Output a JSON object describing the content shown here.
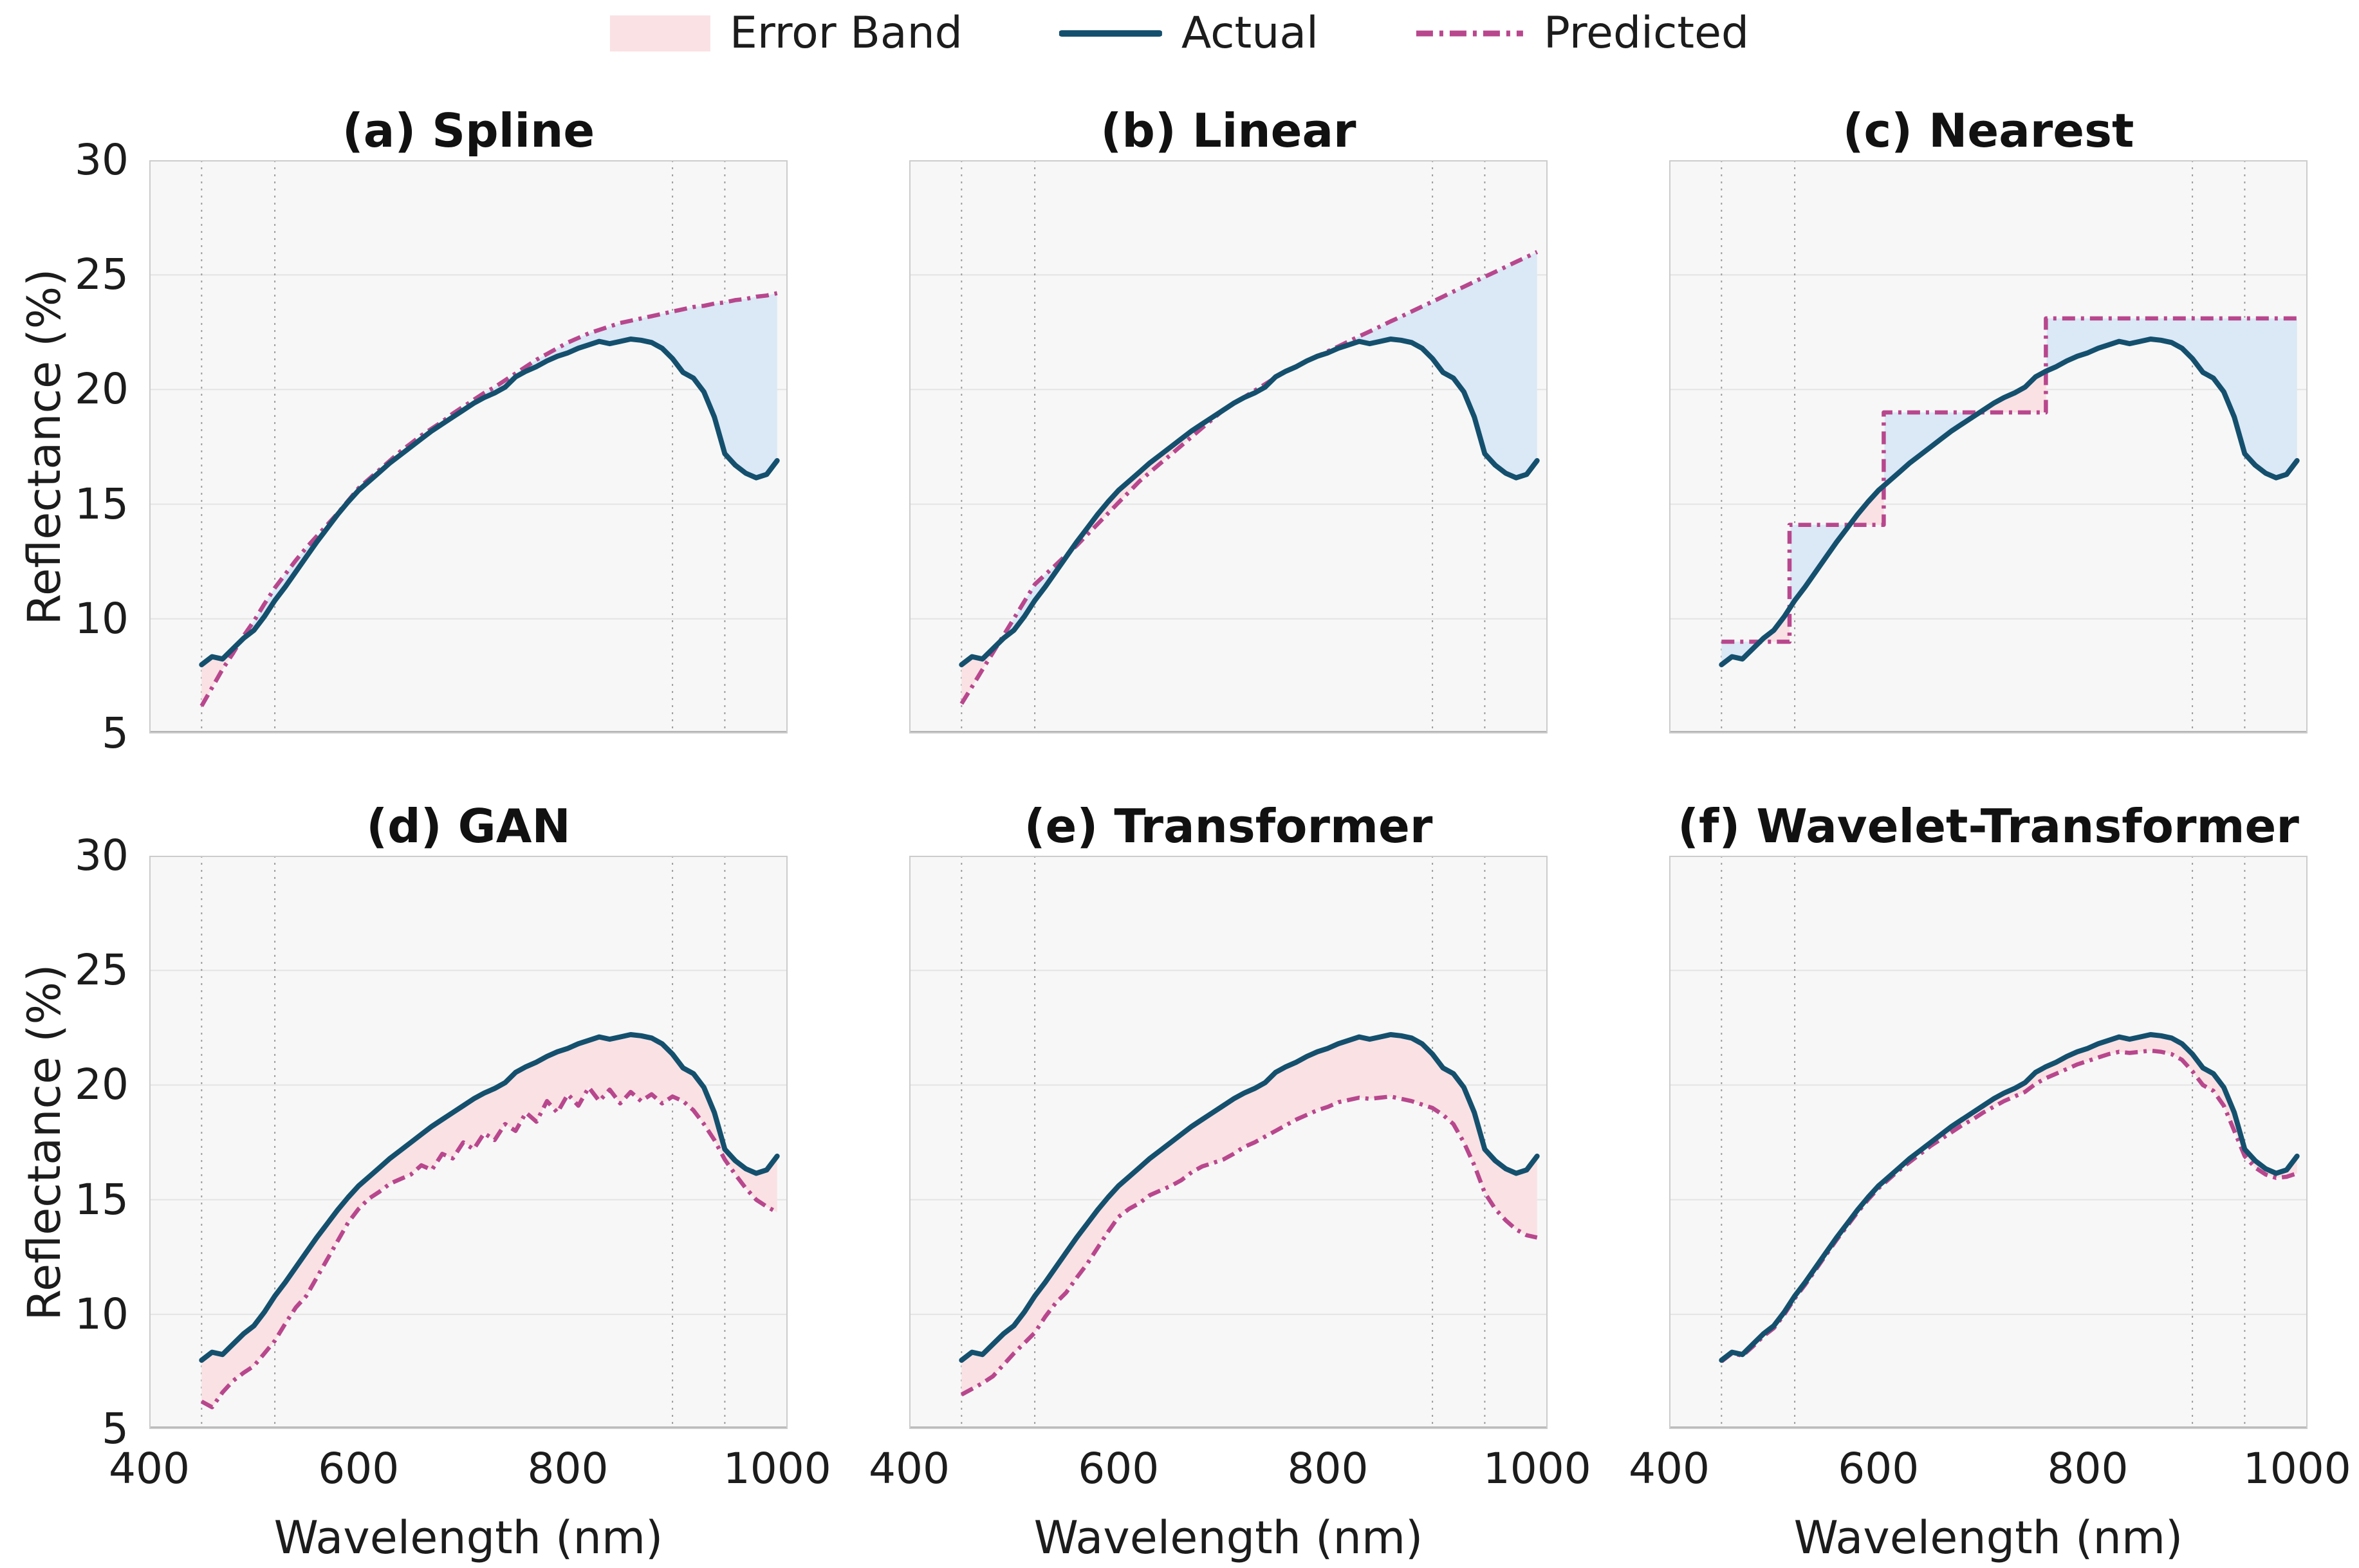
{
  "legend": {
    "items": [
      {
        "label": "Error Band",
        "symbol": "pink-band-swatch"
      },
      {
        "label": "Actual",
        "symbol": "solid-navy-line"
      },
      {
        "label": "Predicted",
        "symbol": "dashdot-magenta-line"
      }
    ]
  },
  "colors": {
    "actual_line": "#14506e",
    "predicted_line": "#b8478d",
    "error_band_fill": "#fae1e4",
    "overshoot_fill": "#dbe8f6",
    "plot_background": "#f7f7f7",
    "grid_line": "#e4e4e4",
    "band_marker_line": "#9d9d9d",
    "spine": "#cccccc",
    "bottom_spine": "#b5b5b5",
    "text": "#1c1c1c"
  },
  "chart_data": {
    "type": "line",
    "xlabel": "Wavelength (nm)",
    "ylabel": "Reflectance (%)",
    "x_ticks": [
      400,
      600,
      800,
      1000
    ],
    "y_ticks": [
      5,
      10,
      15,
      20,
      25,
      30
    ],
    "x_range": [
      400,
      1010
    ],
    "y_range": [
      5,
      30
    ],
    "grid": "horizontal",
    "band_marker_lines_nm": [
      450,
      520,
      900,
      950
    ],
    "wavelengths_nm": [
      450,
      460,
      470,
      480,
      490,
      500,
      510,
      520,
      530,
      540,
      550,
      560,
      570,
      580,
      590,
      600,
      610,
      620,
      630,
      640,
      650,
      660,
      670,
      680,
      690,
      700,
      710,
      720,
      730,
      740,
      750,
      760,
      770,
      780,
      790,
      800,
      810,
      820,
      830,
      840,
      850,
      860,
      870,
      880,
      890,
      900,
      910,
      920,
      930,
      940,
      950,
      960,
      970,
      980,
      990,
      1000
    ],
    "actual_reflectance": [
      8.0,
      8.35,
      8.25,
      8.7,
      9.15,
      9.5,
      10.1,
      10.8,
      11.4,
      12.05,
      12.7,
      13.35,
      13.95,
      14.55,
      15.1,
      15.6,
      16.0,
      16.4,
      16.8,
      17.15,
      17.5,
      17.85,
      18.2,
      18.5,
      18.8,
      19.1,
      19.4,
      19.65,
      19.85,
      20.1,
      20.55,
      20.8,
      21.0,
      21.25,
      21.45,
      21.6,
      21.8,
      21.95,
      22.1,
      22.0,
      22.1,
      22.2,
      22.15,
      22.05,
      21.8,
      21.35,
      20.75,
      20.5,
      19.9,
      18.8,
      17.2,
      16.7,
      16.35,
      16.15,
      16.3,
      16.9
    ],
    "charts": [
      {
        "id": "spline",
        "title": "(a) Spline",
        "predicted": [
          6.2,
          7.0,
          7.8,
          8.5,
          9.25,
          9.9,
          10.65,
          11.35,
          11.95,
          12.55,
          13.1,
          13.6,
          14.1,
          14.6,
          15.15,
          15.7,
          16.1,
          16.5,
          16.9,
          17.3,
          17.65,
          18.0,
          18.3,
          18.6,
          18.95,
          19.25,
          19.55,
          19.85,
          20.1,
          20.4,
          20.7,
          21.0,
          21.3,
          21.55,
          21.8,
          22.05,
          22.25,
          22.45,
          22.6,
          22.75,
          22.9,
          23.0,
          23.1,
          23.2,
          23.3,
          23.4,
          23.5,
          23.6,
          23.65,
          23.75,
          23.8,
          23.9,
          23.95,
          24.05,
          24.1,
          24.2
        ]
      },
      {
        "id": "linear",
        "title": "(b) Linear",
        "predicted": [
          6.3,
          7.04,
          7.79,
          8.53,
          9.27,
          10.01,
          10.76,
          11.5,
          11.93,
          12.35,
          12.78,
          13.2,
          13.67,
          14.13,
          14.6,
          15.07,
          15.53,
          16.0,
          16.39,
          16.78,
          17.16,
          17.55,
          17.94,
          18.33,
          18.71,
          19.1,
          19.38,
          19.67,
          19.95,
          20.23,
          20.52,
          20.8,
          21.02,
          21.23,
          21.45,
          21.67,
          21.88,
          22.1,
          22.32,
          22.53,
          22.75,
          22.97,
          23.18,
          23.4,
          23.62,
          23.83,
          24.05,
          24.27,
          24.48,
          24.7,
          24.92,
          25.13,
          25.35,
          25.57,
          25.78,
          26.0
        ]
      },
      {
        "id": "nearest",
        "title": "(c) Nearest",
        "predicted_step_points": [
          [
            450,
            9.0
          ],
          [
            515,
            9.0
          ],
          [
            515,
            14.1
          ],
          [
            605,
            14.1
          ],
          [
            605,
            19.0
          ],
          [
            760,
            19.0
          ],
          [
            760,
            23.1
          ],
          [
            1000,
            23.1
          ]
        ]
      },
      {
        "id": "gan",
        "title": "(d) GAN",
        "predicted": [
          6.2,
          5.95,
          6.6,
          7.1,
          7.45,
          7.75,
          8.3,
          8.85,
          9.6,
          10.3,
          10.8,
          11.6,
          12.4,
          13.2,
          14.0,
          14.6,
          15.05,
          15.35,
          15.7,
          15.9,
          16.1,
          16.5,
          16.3,
          17.0,
          16.8,
          17.5,
          17.2,
          17.9,
          17.6,
          18.3,
          18.0,
          18.8,
          18.4,
          19.3,
          18.8,
          19.6,
          19.1,
          19.9,
          19.3,
          19.8,
          19.2,
          19.7,
          19.3,
          19.6,
          19.2,
          19.5,
          19.3,
          18.9,
          18.3,
          17.6,
          16.75,
          16.1,
          15.5,
          15.0,
          14.7,
          14.45
        ]
      },
      {
        "id": "transformer",
        "title": "(e) Transformer",
        "predicted": [
          6.5,
          6.75,
          7.0,
          7.3,
          7.8,
          8.3,
          8.75,
          9.2,
          9.9,
          10.5,
          10.95,
          11.6,
          12.2,
          12.9,
          13.6,
          14.25,
          14.6,
          14.85,
          15.2,
          15.4,
          15.6,
          15.85,
          16.2,
          16.45,
          16.6,
          16.75,
          17.0,
          17.3,
          17.5,
          17.75,
          18.0,
          18.25,
          18.5,
          18.7,
          18.9,
          19.05,
          19.25,
          19.35,
          19.45,
          19.4,
          19.45,
          19.5,
          19.4,
          19.3,
          19.15,
          19.0,
          18.7,
          18.3,
          17.5,
          16.5,
          15.3,
          14.6,
          14.1,
          13.7,
          13.45,
          13.35
        ]
      },
      {
        "id": "wavelet",
        "title": "(f) Wavelet-Transformer",
        "predicted": [
          7.95,
          8.3,
          8.2,
          8.6,
          9.05,
          9.4,
          10.0,
          10.7,
          11.3,
          11.95,
          12.6,
          13.25,
          13.85,
          14.45,
          15.0,
          15.5,
          15.9,
          16.3,
          16.65,
          17.0,
          17.35,
          17.65,
          17.95,
          18.25,
          18.5,
          18.8,
          19.05,
          19.3,
          19.5,
          19.7,
          20.05,
          20.3,
          20.5,
          20.7,
          20.9,
          21.05,
          21.2,
          21.35,
          21.45,
          21.4,
          21.45,
          21.5,
          21.45,
          21.35,
          21.1,
          20.6,
          20.0,
          19.75,
          19.1,
          18.0,
          16.9,
          16.4,
          16.1,
          15.95,
          16.0,
          16.15
        ]
      }
    ]
  }
}
